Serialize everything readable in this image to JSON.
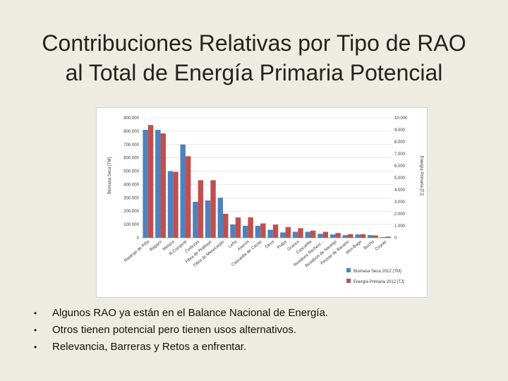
{
  "slide": {
    "title_line1": "Contribuciones Relativas por Tipo de RAO",
    "title_line2": "al Total de Energía Primaria Potencial",
    "bullets": [
      "Algunos RAO ya están en el Balance Nacional de Energía.",
      "Otros tienen potencial pero tienen usos alternativos.",
      "Relevancia, Barreras y Retos a enfrentar."
    ]
  },
  "chart_data": {
    "type": "bar",
    "title": "",
    "ylabel": "Biomasa Seca [TM]",
    "y2label": "Energía Primaria [TJ]",
    "ylim": [
      0,
      900000
    ],
    "y2lim": [
      0,
      10000
    ],
    "y_ticks": [
      "0",
      "100.000",
      "200.000",
      "300.000",
      "400.000",
      "500.000",
      "600.000",
      "700.000",
      "800.000",
      "900.000"
    ],
    "y2_ticks": [
      "0",
      "1.000",
      "2.000",
      "3.000",
      "4.000",
      "5.000",
      "6.000",
      "7.000",
      "8.000",
      "9.000",
      "10.000"
    ],
    "grid": true,
    "legend_position": "bottom-right",
    "categories": [
      "Rastrojo de Piña",
      "Bagazo",
      "Melaza",
      "R.Compost",
      "Cortezas",
      "Fibra de Pejibaye",
      "Fibra de Mesocarpio",
      "Leña",
      "Aserrín",
      "Cascarilla de Cacao",
      "Otros",
      "Pulpa",
      "Granza",
      "Cascarilla",
      "Residuos Recherc...",
      "Residuos de Naranja",
      "Pinzote de Banano",
      "Mini-Bago",
      "Bucha",
      "Coyote"
    ],
    "series": [
      {
        "name": "Biomasa Seca 2012 (TM)",
        "color": "#4f81bd",
        "axis": "left",
        "values": [
          810000,
          810000,
          500000,
          700000,
          270000,
          280000,
          300000,
          100000,
          90000,
          90000,
          60000,
          40000,
          45000,
          45000,
          30000,
          25000,
          20000,
          25000,
          20000,
          5000
        ]
      },
      {
        "name": "Energía Primaria 2012 [TJ]",
        "color": "#c0504d",
        "axis": "right",
        "values": [
          9400,
          8700,
          5500,
          6800,
          4800,
          4800,
          2000,
          1700,
          1700,
          1200,
          1100,
          900,
          800,
          600,
          500,
          400,
          300,
          300,
          200,
          100
        ]
      }
    ]
  }
}
